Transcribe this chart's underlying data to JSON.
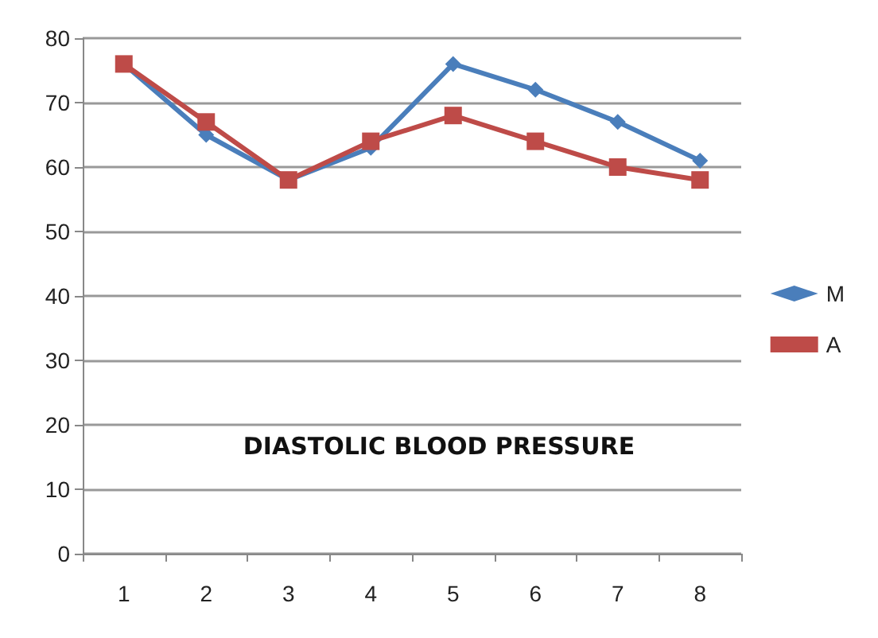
{
  "chart_data": {
    "type": "line",
    "title": "DIASTOLIC BLOOD PRESSURE",
    "categories": [
      "1",
      "2",
      "3",
      "4",
      "5",
      "6",
      "7",
      "8"
    ],
    "series": [
      {
        "name": "M",
        "color": "#4a7ebb",
        "marker": "diamond",
        "values": [
          76,
          65,
          58,
          63,
          76,
          72,
          67,
          61
        ]
      },
      {
        "name": "A",
        "color": "#be4b48",
        "marker": "square",
        "values": [
          76,
          67,
          58,
          64,
          68,
          64,
          60,
          58
        ]
      }
    ],
    "ylim": [
      0,
      80
    ],
    "yticks": [
      0,
      10,
      20,
      30,
      40,
      50,
      60,
      70,
      80
    ],
    "grid": "y",
    "legend": "right"
  }
}
